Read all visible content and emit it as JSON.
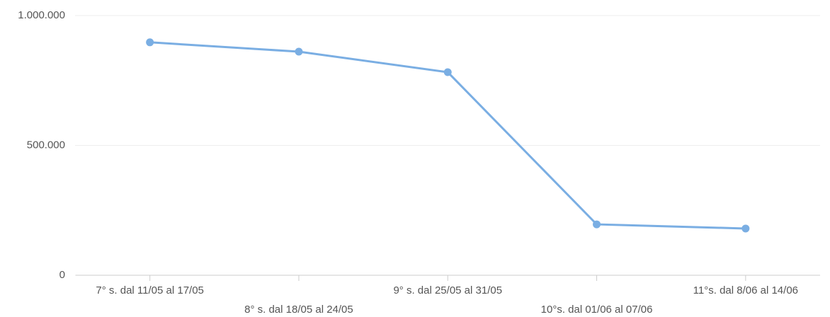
{
  "chart_data": {
    "type": "line",
    "categories": [
      "7° s. dal 11/05 al 17/05",
      "8° s. dal 18/05 al 24/05",
      "9° s. dal 25/05 al 31/05",
      "10°s. dal 01/06 al 07/06",
      "11°s. dal 8/06 al 14/06"
    ],
    "series": [
      {
        "color": "#7aaee3",
        "values": [
          897000,
          861000,
          782000,
          196000,
          180000
        ]
      }
    ],
    "ylim": [
      0,
      1000000
    ],
    "yticks": [
      0,
      {
        "value": 500000,
        "label": "500.000"
      },
      {
        "value": 1000000,
        "label": "1.000.000"
      }
    ],
    "grid": true
  }
}
